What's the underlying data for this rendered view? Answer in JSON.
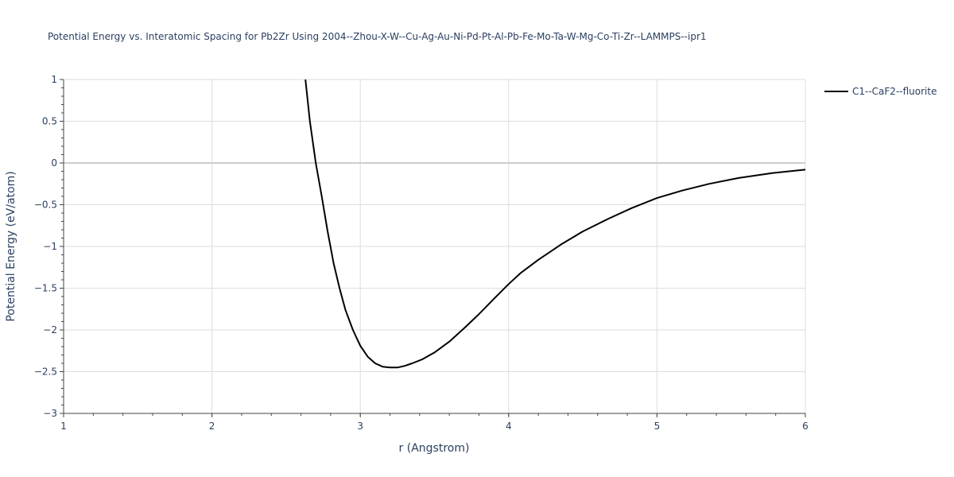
{
  "chart_data": {
    "type": "line",
    "title": "Potential Energy vs. Interatomic Spacing for Pb2Zr Using 2004--Zhou-X-W--Cu-Ag-Au-Ni-Pd-Pt-Al-Pb-Fe-Mo-Ta-W-Mg-Co-Ti-Zr--LAMMPS--ipr1",
    "xlabel": "r (Angstrom)",
    "ylabel": "Potential Energy (eV/atom)",
    "xlim": [
      1,
      6
    ],
    "ylim": [
      -3,
      1
    ],
    "xticks": [
      "1",
      "2",
      "3",
      "4",
      "5",
      "6"
    ],
    "yticks": [
      "1",
      "0.5",
      "0",
      "−0.5",
      "−1",
      "−1.5",
      "−2",
      "−2.5",
      "−3"
    ],
    "grid": true,
    "legend_position": "top-right",
    "series": [
      {
        "name": "C1--CaF2--fluorite",
        "color": "#000000",
        "x": [
          2.63,
          2.66,
          2.7,
          2.74,
          2.78,
          2.82,
          2.86,
          2.9,
          2.95,
          3.0,
          3.05,
          3.1,
          3.15,
          3.2,
          3.25,
          3.3,
          3.35,
          3.42,
          3.5,
          3.6,
          3.7,
          3.8,
          3.9,
          4.0,
          4.08,
          4.2,
          4.35,
          4.5,
          4.67,
          4.83,
          5.0,
          5.17,
          5.35,
          5.55,
          5.78,
          6.0
        ],
        "y": [
          1.0,
          0.5,
          0.0,
          -0.4,
          -0.82,
          -1.2,
          -1.5,
          -1.76,
          -2.0,
          -2.19,
          -2.32,
          -2.4,
          -2.44,
          -2.45,
          -2.45,
          -2.43,
          -2.4,
          -2.35,
          -2.27,
          -2.14,
          -1.98,
          -1.81,
          -1.63,
          -1.45,
          -1.32,
          -1.16,
          -0.98,
          -0.82,
          -0.67,
          -0.54,
          -0.42,
          -0.33,
          -0.25,
          -0.18,
          -0.12,
          -0.08
        ]
      }
    ]
  }
}
